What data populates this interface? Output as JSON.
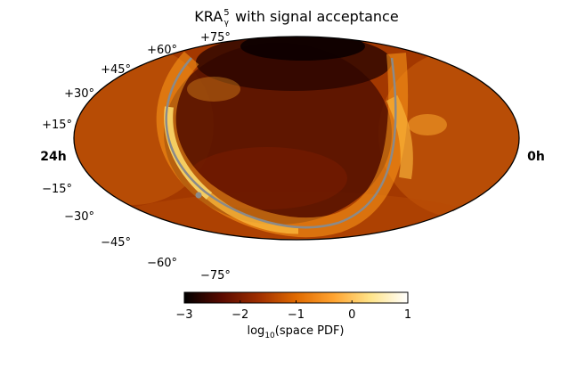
{
  "chart_data": {
    "type": "heatmap",
    "projection": "hammer-aitoff (galactic plane overlay)",
    "title": {
      "main": "KRA",
      "superscript": "5",
      "subscript": "γ",
      "rest": " with signal acceptance"
    },
    "ra_labels": {
      "left": "24h",
      "right": "0h"
    },
    "dec_labels": [
      "+75°",
      "+60°",
      "+45°",
      "+30°",
      "+15°",
      "−15°",
      "−30°",
      "−45°",
      "−60°",
      "−75°"
    ],
    "colorbar": {
      "ticks": [
        "−3",
        "−2",
        "−1",
        "0",
        "1"
      ],
      "range": [
        -3,
        1
      ],
      "label": {
        "pre": "log",
        "sub": "10",
        "post": "(space PDF)"
      },
      "colormap": "afmhot",
      "colors": [
        "#000000",
        "#5a0a00",
        "#a02f00",
        "#e06a00",
        "#ffa330",
        "#ffe48a",
        "#ffffff"
      ]
    },
    "overlay": {
      "name": "galactic plane",
      "color": "#8a8a8a"
    }
  }
}
